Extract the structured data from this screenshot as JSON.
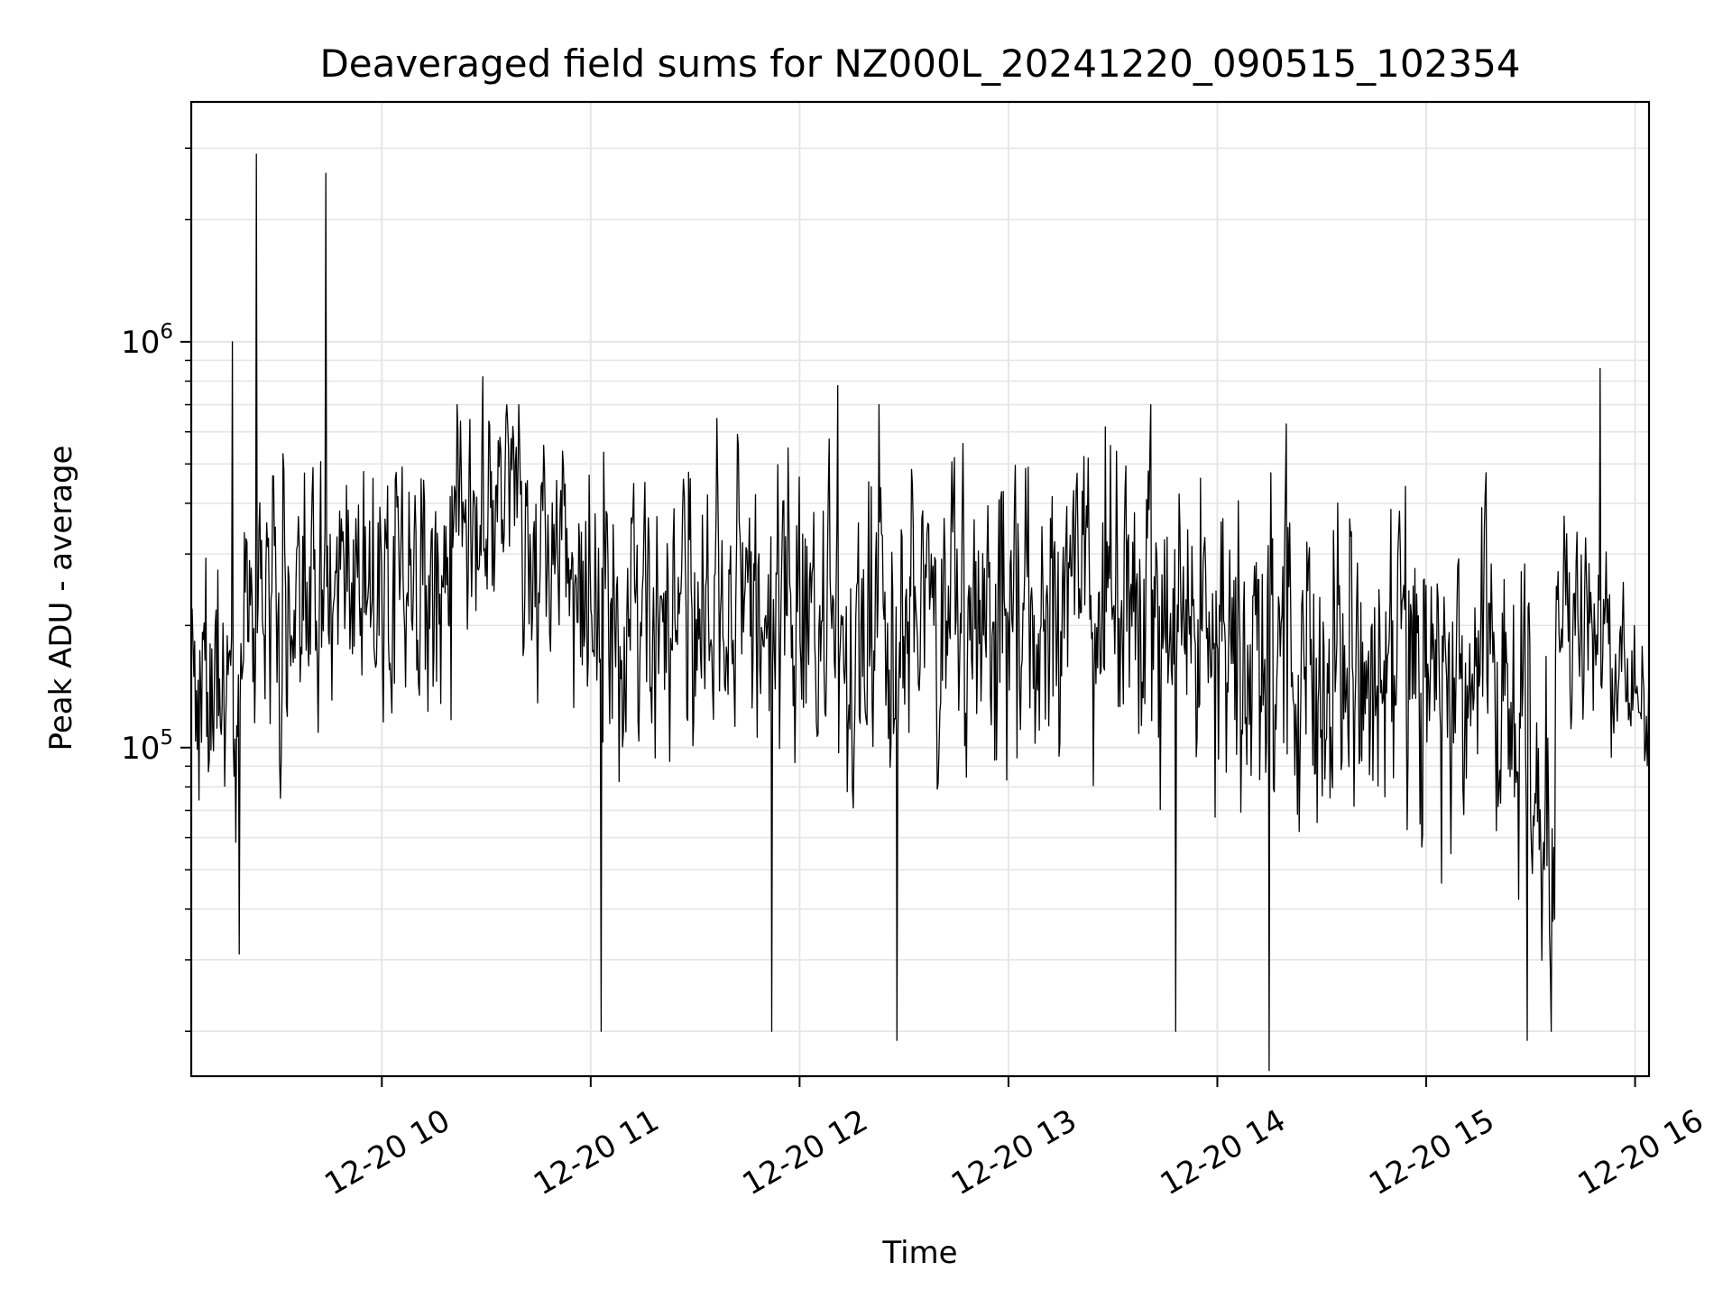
{
  "chart_data": {
    "type": "line",
    "title": "Deaveraged field sums for NZ000L_20241220_090515_102354",
    "xlabel": "Time",
    "ylabel": "Peak ADU - average",
    "y_scale": "log",
    "xlim": [
      "2024-12-20 09:05:15",
      "2024-12-20 16:04:00"
    ],
    "ylim": [
      15500,
      3900000
    ],
    "grid": "both",
    "x_tick_labels": [
      "12-20 10",
      "12-20 11",
      "12-20 12",
      "12-20 13",
      "12-20 14",
      "12-20 15",
      "12-20 16"
    ],
    "x_tick_times": [
      "2024-12-20 10:00",
      "2024-12-20 11:00",
      "2024-12-20 12:00",
      "2024-12-20 13:00",
      "2024-12-20 14:00",
      "2024-12-20 15:00",
      "2024-12-20 16:00"
    ],
    "y_tick_labels": [
      {
        "value": 100000,
        "base": "10",
        "exp": "5"
      },
      {
        "value": 1000000,
        "base": "10",
        "exp": "6"
      }
    ],
    "line_color": "#000000",
    "grid_color": "#e6e6e6",
    "segments": [
      {
        "start": "2024-12-20 09:05:15",
        "end": "2024-12-20 09:20",
        "median": 150000,
        "sigma": 0.55
      },
      {
        "start": "2024-12-20 09:20",
        "end": "2024-12-20 09:40",
        "median": 240000,
        "sigma": 0.55
      },
      {
        "start": "2024-12-20 09:40",
        "end": "2024-12-20 10:20",
        "median": 250000,
        "sigma": 0.55
      },
      {
        "start": "2024-12-20 10:20",
        "end": "2024-12-20 10:40",
        "median": 370000,
        "sigma": 0.5
      },
      {
        "start": "2024-12-20 10:40",
        "end": "2024-12-20 10:55",
        "median": 320000,
        "sigma": 0.45
      },
      {
        "start": "2024-12-20 10:55",
        "end": "2024-12-20 13:45",
        "median": 220000,
        "sigma": 0.6
      },
      {
        "start": "2024-12-20 13:45",
        "end": "2024-12-20 15:30",
        "median": 160000,
        "sigma": 0.65
      },
      {
        "start": "2024-12-20 15:30",
        "end": "2024-12-20 15:37",
        "median": 80000,
        "sigma": 0.55
      },
      {
        "start": "2024-12-20 15:37",
        "end": "2024-12-20 15:53",
        "median": 200000,
        "sigma": 0.4
      },
      {
        "start": "2024-12-20 15:53",
        "end": "2024-12-20 16:04",
        "median": 140000,
        "sigma": 0.35
      }
    ],
    "peaks": [
      {
        "t": "2024-12-20 09:17",
        "value": 1000000
      },
      {
        "t": "2024-12-20 09:19",
        "value": 31000
      },
      {
        "t": "2024-12-20 09:24",
        "value": 2900000
      },
      {
        "t": "2024-12-20 09:44",
        "value": 2600000
      },
      {
        "t": "2024-12-20 10:29",
        "value": 820000
      },
      {
        "t": "2024-12-20 11:03",
        "value": 20000
      },
      {
        "t": "2024-12-20 11:52",
        "value": 20000
      },
      {
        "t": "2024-12-20 12:11",
        "value": 780000
      },
      {
        "t": "2024-12-20 12:28",
        "value": 19000
      },
      {
        "t": "2024-12-20 13:48",
        "value": 20000
      },
      {
        "t": "2024-12-20 14:15",
        "value": 16000
      },
      {
        "t": "2024-12-20 15:29",
        "value": 19000
      },
      {
        "t": "2024-12-20 15:36",
        "value": 20000
      },
      {
        "t": "2024-12-20 15:50",
        "value": 860000
      }
    ]
  }
}
